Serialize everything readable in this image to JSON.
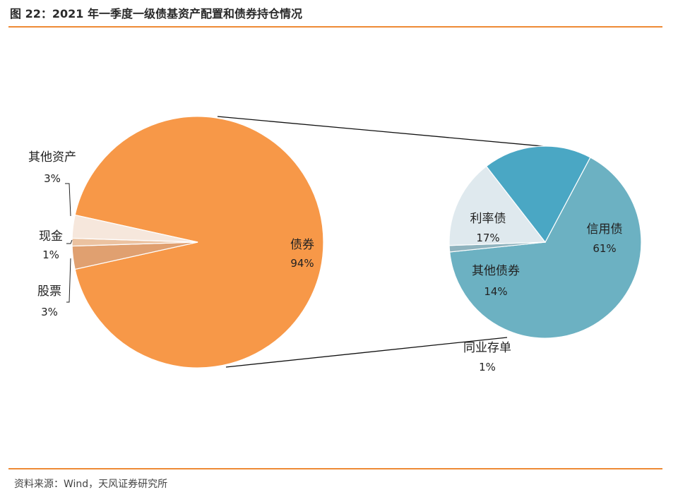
{
  "header": {
    "title": "图 22：2021 年一季度一级债基资产配置和债券持仓情况"
  },
  "footer": {
    "source": "资料来源：Wind，天风证券研究所"
  },
  "colors": {
    "accent_rule": "#ee8a35",
    "bond": "#f79848",
    "other_assets": "#e0a070",
    "cash": "#ebc2a0",
    "stock": "#f6e7dc",
    "credit": "#6cb1c2",
    "rate": "#4aa7c4",
    "other_bond": "#dfe9ee",
    "ncd": "#8fb3be"
  },
  "chart_data": [
    {
      "type": "pie",
      "title": "",
      "slices": [
        {
          "name": "债券",
          "value": 94,
          "label": "94%"
        },
        {
          "name": "其他资产",
          "value": 3,
          "label": "3%"
        },
        {
          "name": "现金",
          "value": 1,
          "label": "1%"
        },
        {
          "name": "股票",
          "value": 3,
          "label": "3%"
        }
      ]
    },
    {
      "type": "pie",
      "title": "",
      "slices": [
        {
          "name": "信用债",
          "value": 61,
          "label": "61%"
        },
        {
          "name": "同业存单",
          "value": 1,
          "label": "1%"
        },
        {
          "name": "其他债券",
          "value": 14,
          "label": "14%"
        },
        {
          "name": "利率债",
          "value": 17,
          "label": "17%"
        }
      ]
    }
  ]
}
